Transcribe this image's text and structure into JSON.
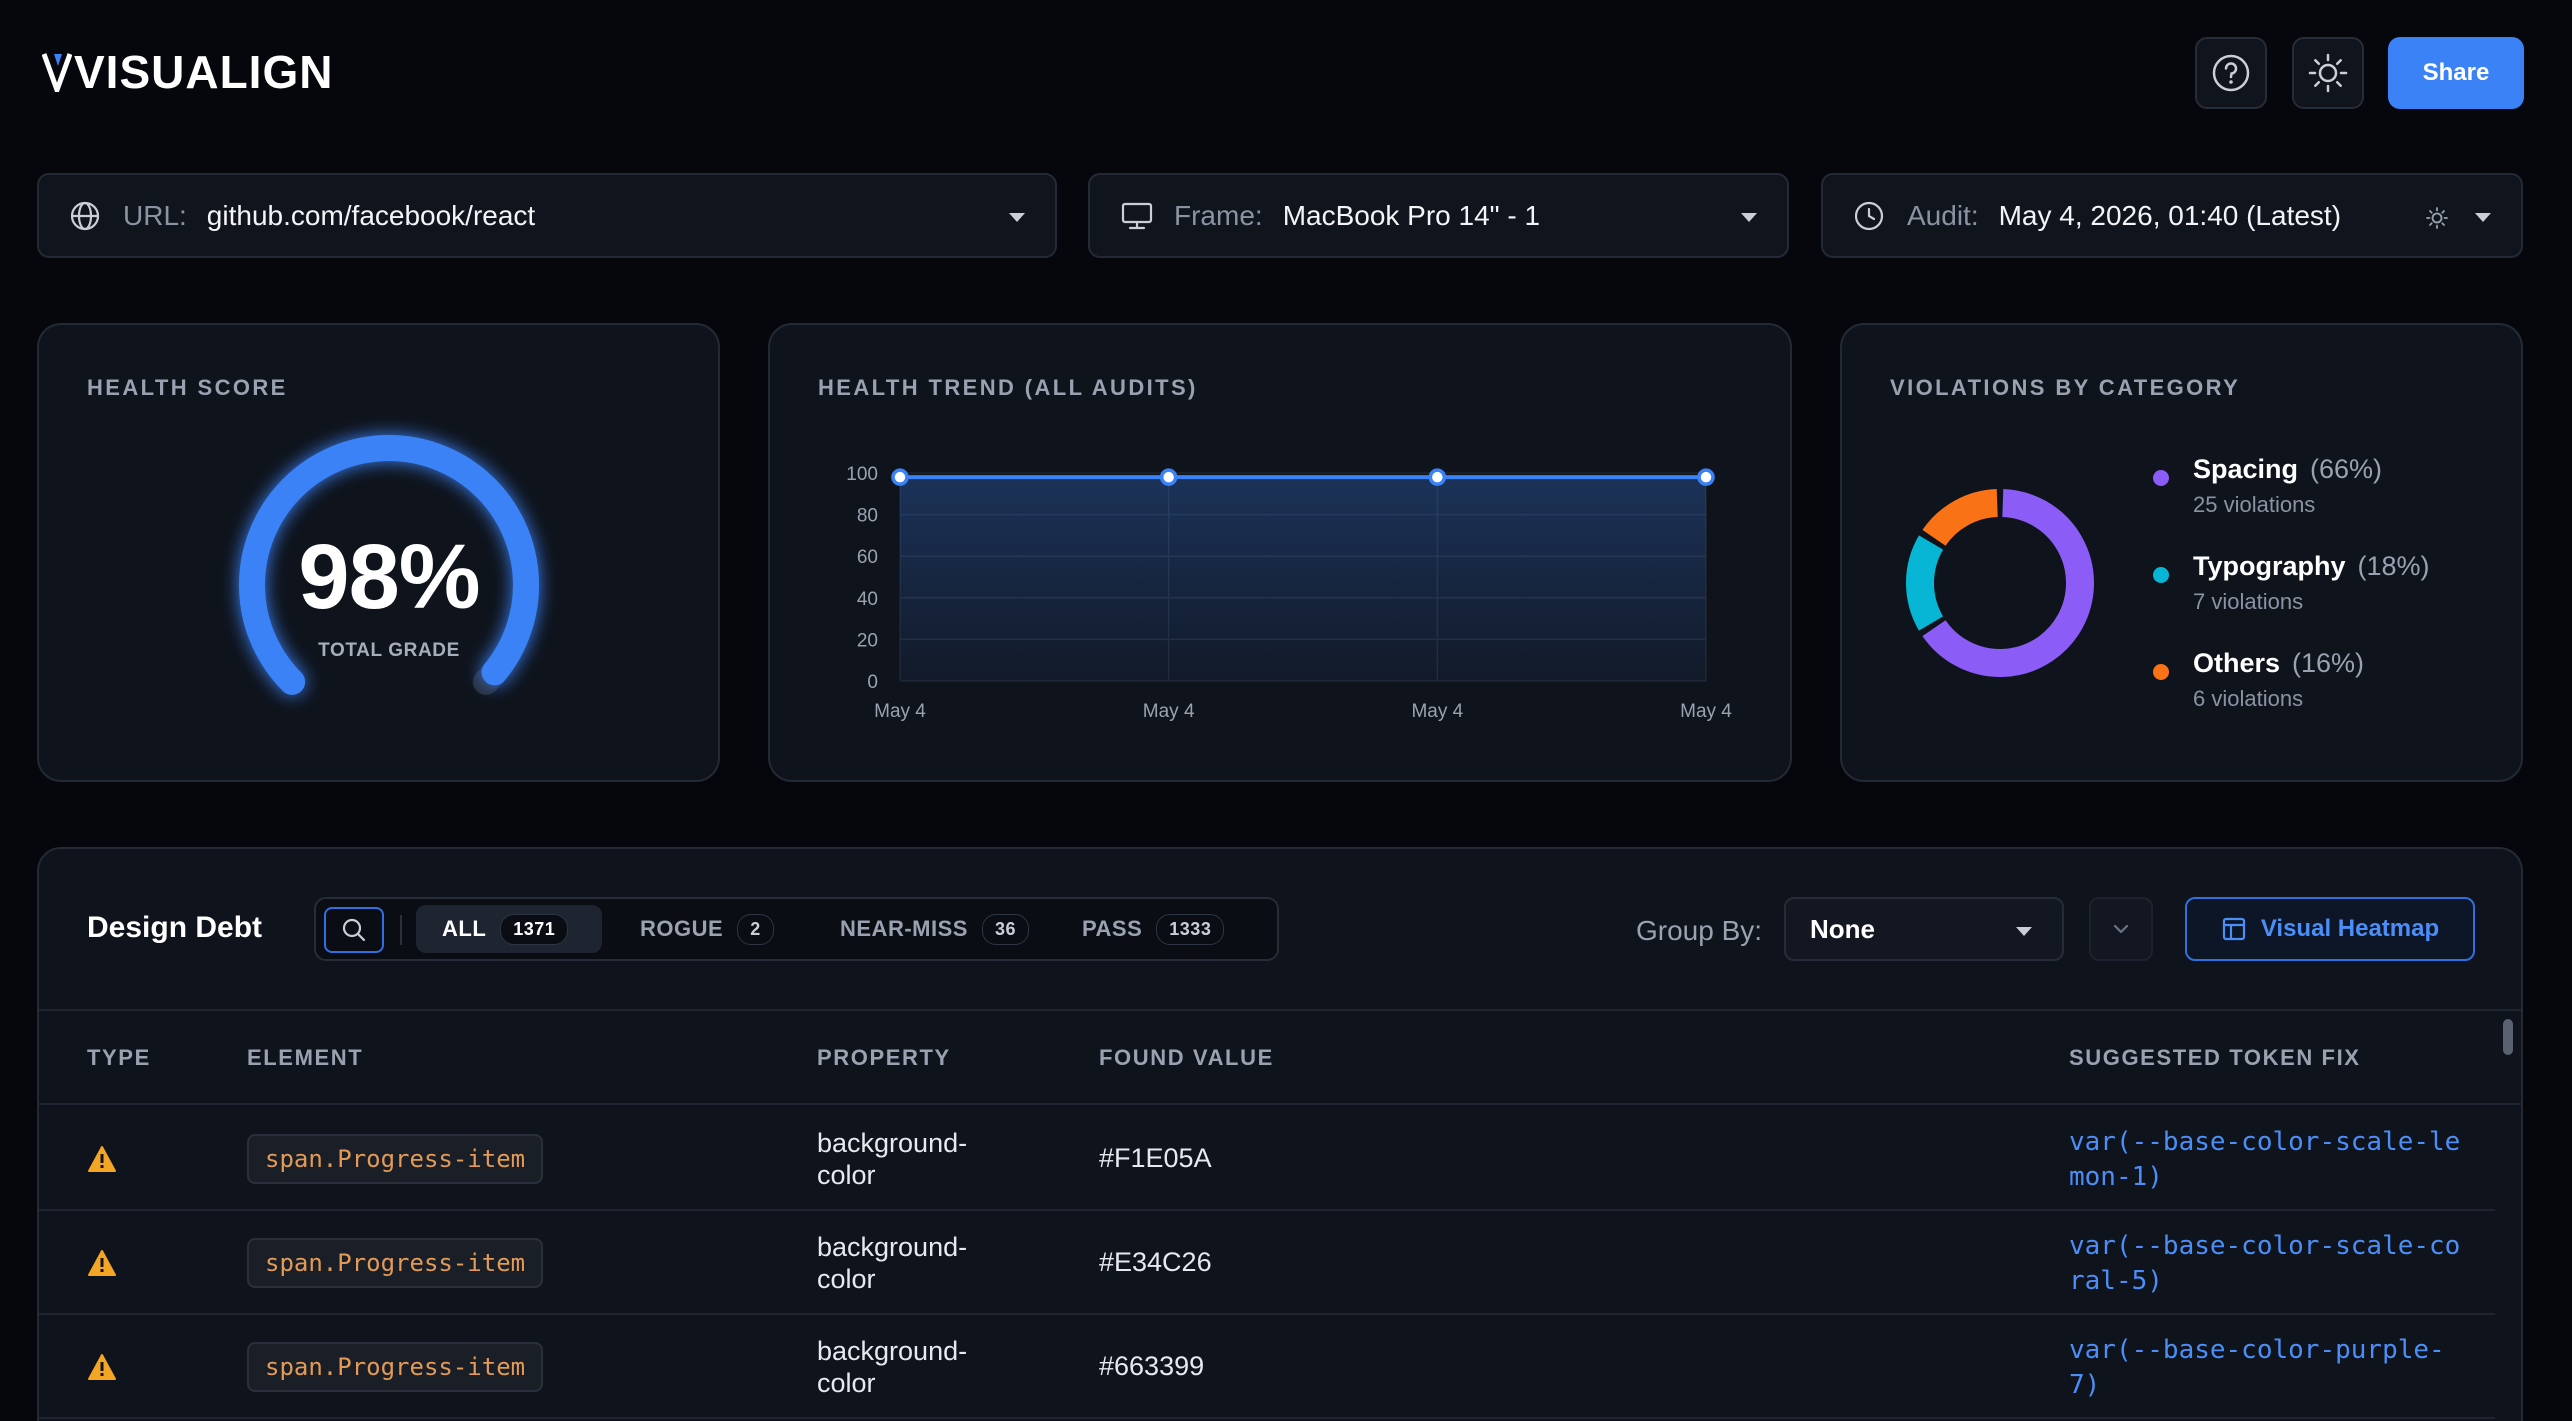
{
  "app": {
    "brand": "VISUALIGN",
    "share_label": "Share"
  },
  "icons": {
    "help": "help-circle-icon",
    "theme": "sun-icon",
    "url": "globe-icon",
    "frame": "monitor-icon",
    "audit": "clock-icon"
  },
  "selectors": {
    "url": {
      "label": "URL:",
      "value": "github.com/facebook/react"
    },
    "frame": {
      "label": "Frame:",
      "value": "MacBook Pro 14\" - 1"
    },
    "audit": {
      "label": "Audit:",
      "value": "May 4, 2026, 01:40 (Latest)"
    }
  },
  "health_score": {
    "title": "HEALTH SCORE",
    "value_text": "98%",
    "value": 98,
    "sub_label": "TOTAL GRADE"
  },
  "health_trend": {
    "title": "HEALTH TREND (ALL AUDITS)"
  },
  "violations": {
    "title": "VIOLATIONS BY CATEGORY",
    "items": [
      {
        "name": "Spacing",
        "pct": "(66%)",
        "count": "25 violations",
        "color": "#8b5cf6"
      },
      {
        "name": "Typography",
        "pct": "(18%)",
        "count": "7 violations",
        "color": "#06b6d4"
      },
      {
        "name": "Others",
        "pct": "(16%)",
        "count": "6 violations",
        "color": "#f97316"
      }
    ]
  },
  "chart_data": [
    {
      "type": "line",
      "title": "HEALTH TREND (ALL AUDITS)",
      "x": [
        "May 4",
        "May 4",
        "May 4",
        "May 4"
      ],
      "series": [
        {
          "values": [
            98,
            98,
            98,
            98
          ]
        }
      ],
      "ylim": [
        0,
        100
      ],
      "yticks": [
        "0",
        "20",
        "40",
        "60",
        "80",
        "100"
      ],
      "grid": true,
      "color": "#3b82f6"
    },
    {
      "type": "pie",
      "title": "VIOLATIONS BY CATEGORY",
      "labels": [
        "Spacing",
        "Typography",
        "Others"
      ],
      "values": [
        66,
        18,
        16
      ],
      "colors": [
        "#8b5cf6",
        "#06b6d4",
        "#f97316"
      ]
    }
  ],
  "design_debt": {
    "title": "Design Debt",
    "filters": [
      {
        "label": "ALL",
        "count": "1371",
        "active": true
      },
      {
        "label": "ROGUE",
        "count": "2"
      },
      {
        "label": "NEAR-MISS",
        "count": "36"
      },
      {
        "label": "PASS",
        "count": "1333"
      }
    ],
    "group_by_label": "Group By:",
    "group_by_value": "None",
    "heatmap_label": "Visual Heatmap",
    "columns": [
      "TYPE",
      "ELEMENT",
      "PROPERTY",
      "FOUND VALUE",
      "SUGGESTED TOKEN FIX"
    ],
    "rows": [
      {
        "type_icon": "warning-icon",
        "element": "span.Progress-item",
        "property": "background-color",
        "found": "#F1E05A",
        "fix": "var(--base-color-scale-lemon-1)"
      },
      {
        "type_icon": "warning-icon",
        "element": "span.Progress-item",
        "property": "background-color",
        "found": "#E34C26",
        "fix": "var(--base-color-scale-coral-5)"
      },
      {
        "type_icon": "warning-icon",
        "element": "span.Progress-item",
        "property": "background-color",
        "found": "#663399",
        "fix": "var(--base-color-purple-7)"
      }
    ]
  }
}
